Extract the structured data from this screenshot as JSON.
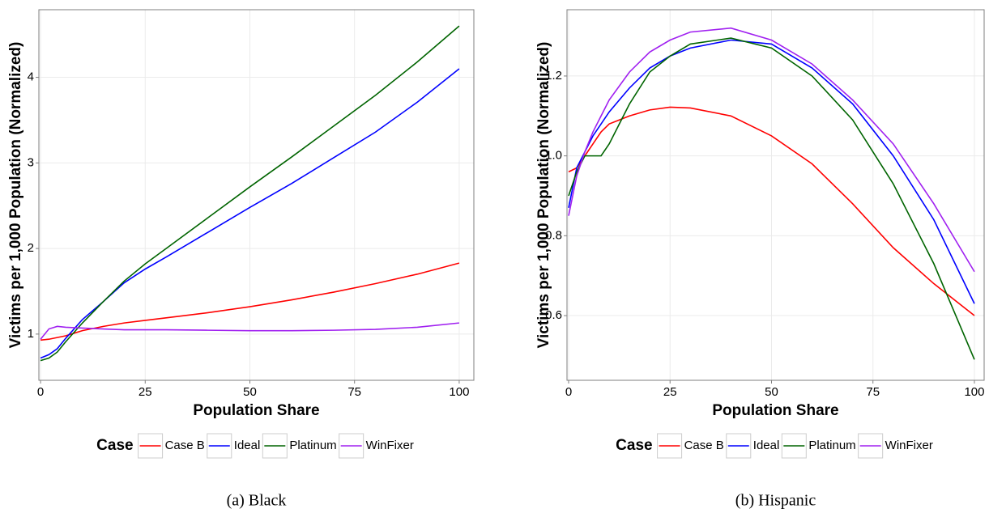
{
  "chart_data": [
    {
      "type": "line",
      "caption": "(a) Black",
      "xlabel": "Population Share",
      "ylabel": "Victims per 1,000 Population (Normalized)",
      "legend_title": "Case",
      "x": [
        0,
        2,
        4,
        6,
        8,
        10,
        15,
        20,
        25,
        30,
        40,
        50,
        60,
        70,
        80,
        90,
        100
      ],
      "xlim": [
        -0.4,
        103.5
      ],
      "ylim": [
        0.46,
        4.79
      ],
      "xticks": [
        0,
        25,
        50,
        75,
        100
      ],
      "yticks": [
        1,
        2,
        3,
        4
      ],
      "grid": true,
      "series": [
        {
          "name": "Case B",
          "color": "#ff0000",
          "values": [
            0.93,
            0.94,
            0.96,
            0.98,
            1.01,
            1.04,
            1.09,
            1.13,
            1.16,
            1.19,
            1.25,
            1.32,
            1.4,
            1.49,
            1.59,
            1.7,
            1.83
          ]
        },
        {
          "name": "Ideal",
          "color": "#0000ff",
          "values": [
            0.72,
            0.76,
            0.83,
            0.95,
            1.06,
            1.17,
            1.38,
            1.6,
            1.76,
            1.9,
            2.19,
            2.48,
            2.76,
            3.06,
            3.36,
            3.71,
            4.1
          ]
        },
        {
          "name": "Platinum",
          "color": "#006400",
          "values": [
            0.69,
            0.72,
            0.79,
            0.91,
            1.02,
            1.13,
            1.38,
            1.62,
            1.82,
            2.0,
            2.36,
            2.72,
            3.07,
            3.43,
            3.79,
            4.18,
            4.6
          ]
        },
        {
          "name": "WinFixer",
          "color": "#a020f0",
          "values": [
            0.94,
            1.06,
            1.09,
            1.08,
            1.075,
            1.07,
            1.06,
            1.05,
            1.05,
            1.05,
            1.045,
            1.04,
            1.04,
            1.045,
            1.055,
            1.08,
            1.13
          ]
        }
      ]
    },
    {
      "type": "line",
      "caption": "(b) Hispanic",
      "xlabel": "Population Share",
      "ylabel": "Victims per 1,000 Population (Normalized)",
      "legend_title": "Case",
      "x": [
        0,
        2,
        4,
        6,
        8,
        10,
        15,
        20,
        25,
        30,
        40,
        50,
        60,
        70,
        80,
        90,
        100
      ],
      "xlim": [
        -0.4,
        102.4
      ],
      "ylim": [
        0.438,
        1.366
      ],
      "xticks": [
        0,
        25,
        50,
        75,
        100
      ],
      "yticks": [
        0.6,
        0.8,
        {
          "value": 1,
          "label": "1.0"
        },
        1.2
      ],
      "grid": true,
      "series": [
        {
          "name": "Case B",
          "color": "#ff0000",
          "values": [
            0.96,
            0.97,
            1.0,
            1.03,
            1.06,
            1.08,
            1.1,
            1.115,
            1.122,
            1.12,
            1.1,
            1.05,
            0.98,
            0.88,
            0.77,
            0.68,
            0.6
          ]
        },
        {
          "name": "Ideal",
          "color": "#0000ff",
          "values": [
            0.87,
            0.97,
            1.01,
            1.05,
            1.08,
            1.11,
            1.17,
            1.22,
            1.25,
            1.27,
            1.29,
            1.28,
            1.22,
            1.13,
            1.0,
            0.84,
            0.63
          ]
        },
        {
          "name": "Platinum",
          "color": "#006400",
          "values": [
            0.9,
            0.96,
            1.0,
            1.0,
            1.0,
            1.03,
            1.13,
            1.21,
            1.25,
            1.28,
            1.295,
            1.27,
            1.2,
            1.09,
            0.93,
            0.73,
            0.49
          ]
        },
        {
          "name": "WinFixer",
          "color": "#a020f0",
          "values": [
            0.85,
            0.95,
            1.01,
            1.06,
            1.1,
            1.14,
            1.21,
            1.26,
            1.29,
            1.31,
            1.32,
            1.29,
            1.23,
            1.14,
            1.03,
            0.88,
            0.71
          ]
        }
      ]
    }
  ]
}
